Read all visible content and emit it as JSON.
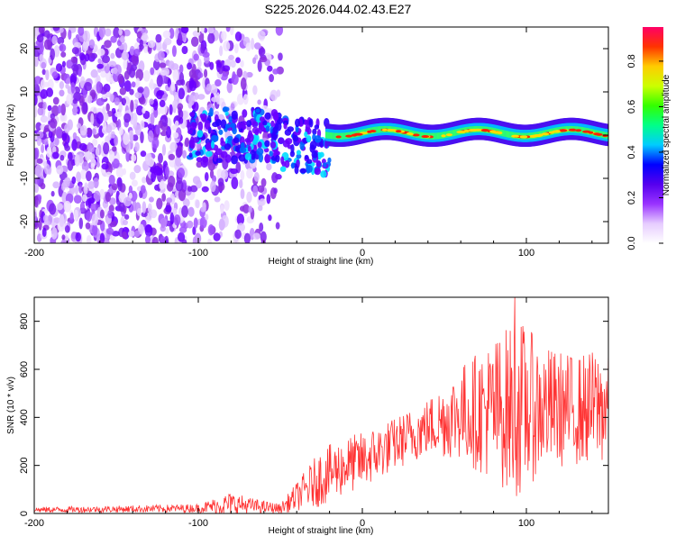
{
  "figure": {
    "title": "S225.2026.044.02.43.E27"
  },
  "chart_data": [
    {
      "type": "heatmap",
      "xlabel": "Height of straight line (km)",
      "ylabel": "Frequency (Hz)",
      "xlim": [
        -200,
        150
      ],
      "ylim": [
        -25,
        25
      ],
      "x_ticks": [
        -200,
        -100,
        0,
        100
      ],
      "y_ticks": [
        -20,
        -10,
        0,
        10,
        20
      ],
      "colorbar": {
        "label": "Normalized spectral amplitude",
        "range": [
          0,
          0.95
        ],
        "ticks": [
          0.0,
          0.2,
          0.4,
          0.6,
          0.8
        ],
        "colors": [
          "#ffffff",
          "#e6ccff",
          "#9933ff",
          "#5500ee",
          "#0000ff",
          "#00ccff",
          "#00ff88",
          "#33ff00",
          "#ccff00",
          "#ffcc00",
          "#ff3300",
          "#ff0066"
        ]
      },
      "description_regions": [
        {
          "x_range": [
            -200,
            -55
          ],
          "freq_range": [
            -25,
            25
          ],
          "character": "scattered noise"
        },
        {
          "x_range": [
            -105,
            -25
          ],
          "freq_range": [
            -8,
            6
          ],
          "character": "moderate signal"
        },
        {
          "x_range": [
            -25,
            150
          ],
          "freq_range": [
            -2,
            3
          ],
          "character": "strong narrow band near 0 Hz"
        }
      ]
    },
    {
      "type": "line",
      "xlabel": "Height of straight line (km)",
      "ylabel": "SNR (10 * v/v)",
      "xlim": [
        -200,
        150
      ],
      "ylim": [
        0,
        900
      ],
      "x_ticks": [
        -200,
        -100,
        0,
        100
      ],
      "y_ticks": [
        0,
        200,
        400,
        600,
        800
      ],
      "color": "#ff3333",
      "envelope": [
        {
          "x": -200,
          "mean": 15,
          "amp": 12
        },
        {
          "x": -150,
          "mean": 18,
          "amp": 14
        },
        {
          "x": -100,
          "mean": 22,
          "amp": 18
        },
        {
          "x": -80,
          "mean": 40,
          "amp": 50
        },
        {
          "x": -65,
          "mean": 30,
          "amp": 30
        },
        {
          "x": -50,
          "mean": 20,
          "amp": 20
        },
        {
          "x": -40,
          "mean": 70,
          "amp": 60
        },
        {
          "x": -25,
          "mean": 150,
          "amp": 120
        },
        {
          "x": -10,
          "mean": 200,
          "amp": 120
        },
        {
          "x": 0,
          "mean": 220,
          "amp": 120
        },
        {
          "x": 20,
          "mean": 290,
          "amp": 110
        },
        {
          "x": 40,
          "mean": 360,
          "amp": 120
        },
        {
          "x": 60,
          "mean": 420,
          "amp": 200
        },
        {
          "x": 80,
          "mean": 430,
          "amp": 300
        },
        {
          "x": 95,
          "mean": 440,
          "amp": 380
        },
        {
          "x": 110,
          "mean": 440,
          "amp": 260
        },
        {
          "x": 130,
          "mean": 430,
          "amp": 230
        },
        {
          "x": 150,
          "mean": 450,
          "amp": 250
        }
      ],
      "peak": {
        "x": 93,
        "y": 905
      }
    }
  ]
}
